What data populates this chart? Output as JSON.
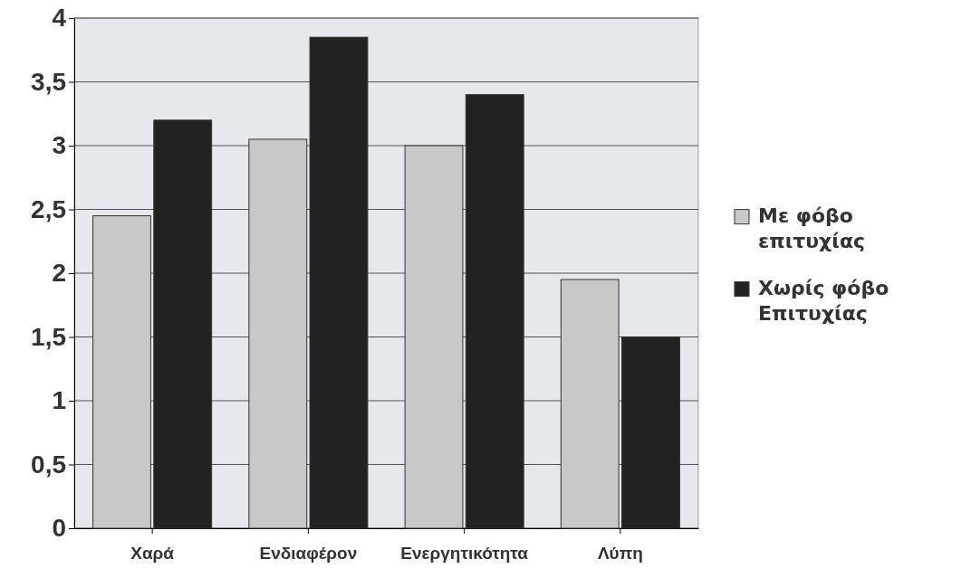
{
  "chart_data": {
    "type": "bar",
    "categories": [
      "Χαρά",
      "Ενδιαφέρον",
      "Ενεργητικότητα",
      "Λύπη"
    ],
    "series": [
      {
        "name": "Με φόβο επιτυχίας",
        "color": "#c8c8c8",
        "values": [
          2.45,
          3.05,
          3.0,
          1.95
        ]
      },
      {
        "name": "Χωρίς φόβο Επιτυχίας",
        "color": "#222222",
        "values": [
          3.2,
          3.85,
          3.4,
          1.5
        ]
      }
    ],
    "ylim": [
      0,
      4
    ],
    "yticks": [
      {
        "value": 0,
        "label": "0"
      },
      {
        "value": 0.5,
        "label": "0,5"
      },
      {
        "value": 1,
        "label": "1"
      },
      {
        "value": 1.5,
        "label": "1,5"
      },
      {
        "value": 2,
        "label": "2"
      },
      {
        "value": 2.5,
        "label": "2,5"
      },
      {
        "value": 3,
        "label": "3"
      },
      {
        "value": 3.5,
        "label": "3,5"
      },
      {
        "value": 4,
        "label": "4"
      }
    ],
    "grid": "y",
    "legend": "right"
  }
}
